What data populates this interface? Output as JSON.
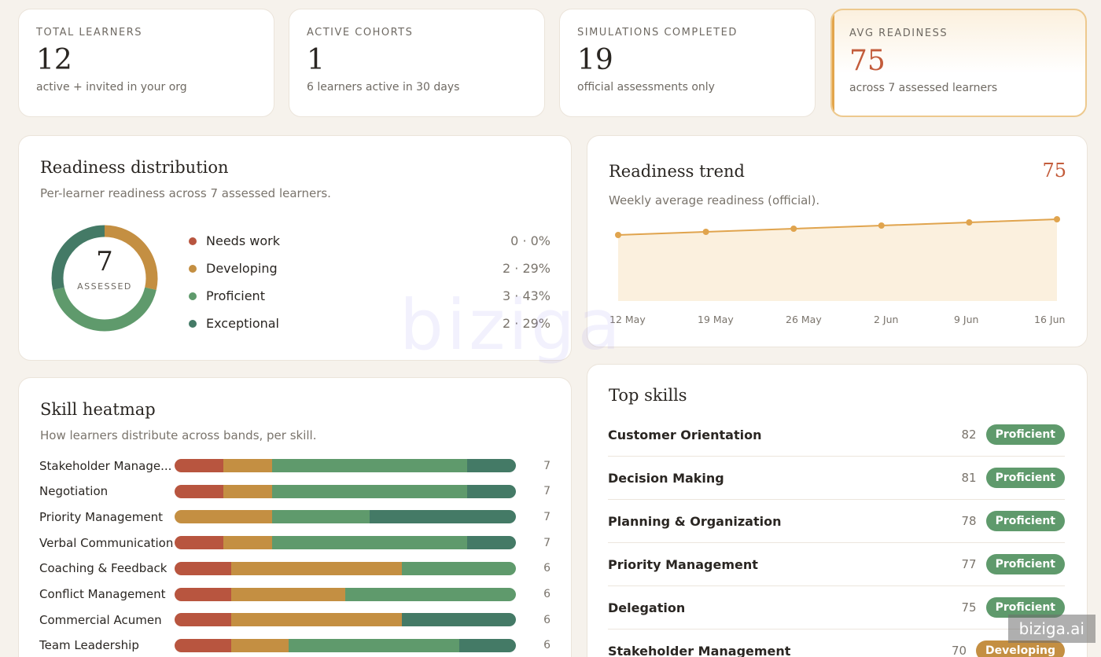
{
  "stats": [
    {
      "label": "TOTAL LEARNERS",
      "value": "12",
      "sub": "active + invited in your org"
    },
    {
      "label": "ACTIVE COHORTS",
      "value": "1",
      "sub": "6 learners active in 30 days"
    },
    {
      "label": "SIMULATIONS COMPLETED",
      "value": "19",
      "sub": "official assessments only"
    },
    {
      "label": "AVG READINESS",
      "value": "75",
      "sub": "across 7 assessed learners"
    }
  ],
  "distribution": {
    "title": "Readiness distribution",
    "subtitle": "Per-learner readiness across 7 assessed learners.",
    "center_value": "7",
    "center_label": "ASSESSED",
    "bands": [
      {
        "name": "Needs work",
        "count": 0,
        "value": "0 · 0%",
        "color": "#b8553f"
      },
      {
        "name": "Developing",
        "count": 2,
        "value": "2 · 29%",
        "color": "#c48f42"
      },
      {
        "name": "Proficient",
        "count": 3,
        "value": "3 · 43%",
        "color": "#5f9a6c"
      },
      {
        "name": "Exceptional",
        "count": 2,
        "value": "2 · 29%",
        "color": "#447a66"
      }
    ]
  },
  "trend": {
    "title": "Readiness trend",
    "value": "75",
    "subtitle": "Weekly average readiness (official).",
    "chart_data": {
      "type": "area",
      "x": [
        "12 May",
        "19 May",
        "26 May",
        "2 Jun",
        "9 Jun",
        "16 Jun"
      ],
      "values": [
        71,
        72,
        73,
        74,
        75,
        76
      ],
      "ylim": [
        50,
        80
      ],
      "color": "#e0a44e"
    }
  },
  "heatmap": {
    "title": "Skill heatmap",
    "subtitle": "How learners distribute across bands, per skill.",
    "rows": [
      {
        "name": "Stakeholder Manage...",
        "count": "7",
        "bands": [
          1,
          1,
          4,
          1
        ]
      },
      {
        "name": "Negotiation",
        "count": "7",
        "bands": [
          1,
          1,
          4,
          1
        ]
      },
      {
        "name": "Priority Management",
        "count": "7",
        "bands": [
          0,
          2,
          2,
          3
        ]
      },
      {
        "name": "Verbal Communication",
        "count": "7",
        "bands": [
          1,
          1,
          4,
          1
        ]
      },
      {
        "name": "Coaching & Feedback",
        "count": "6",
        "bands": [
          1,
          3,
          2,
          0
        ]
      },
      {
        "name": "Conflict Management",
        "count": "6",
        "bands": [
          1,
          2,
          3,
          0
        ]
      },
      {
        "name": "Commercial Acumen",
        "count": "6",
        "bands": [
          1,
          3,
          0,
          2
        ]
      },
      {
        "name": "Team Leadership",
        "count": "6",
        "bands": [
          1,
          1,
          3,
          1
        ]
      }
    ]
  },
  "top_skills": {
    "title": "Top skills",
    "rows": [
      {
        "name": "Customer Orientation",
        "score": "82",
        "badge": "Proficient",
        "color": "#5f9a6c"
      },
      {
        "name": "Decision Making",
        "score": "81",
        "badge": "Proficient",
        "color": "#5f9a6c"
      },
      {
        "name": "Planning & Organization",
        "score": "78",
        "badge": "Proficient",
        "color": "#5f9a6c"
      },
      {
        "name": "Priority Management",
        "score": "77",
        "badge": "Proficient",
        "color": "#5f9a6c"
      },
      {
        "name": "Delegation",
        "score": "75",
        "badge": "Proficient",
        "color": "#5f9a6c"
      },
      {
        "name": "Stakeholder Management",
        "score": "70",
        "badge": "Developing",
        "color": "#c48f42"
      }
    ]
  },
  "watermark": "biziga",
  "brand_tag": "biziga.ai"
}
